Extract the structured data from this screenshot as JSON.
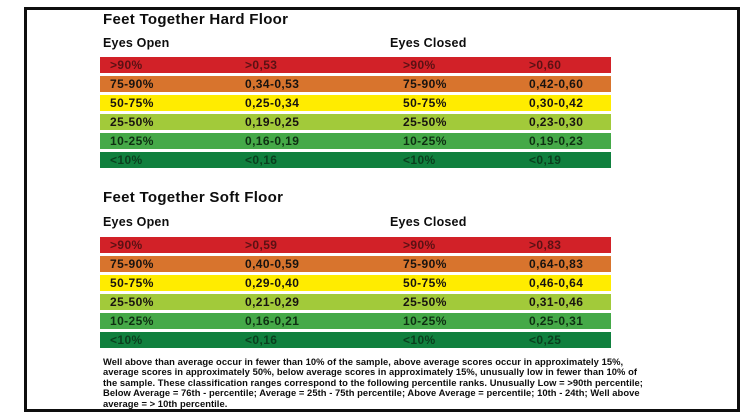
{
  "colors": {
    "red": {
      "bg": "#d22128",
      "text": "#5a1114"
    },
    "orange": {
      "bg": "#d8742d",
      "text": "#181310"
    },
    "yellow": {
      "bg": "#ffec00",
      "text": "#181310"
    },
    "yellow_green": {
      "bg": "#a2ca3a",
      "text": "#181310"
    },
    "green": {
      "bg": "#45a948",
      "text": "#0e2f12"
    },
    "dark_green": {
      "bg": "#10803e",
      "text": "#0a3e1e"
    },
    "frame_border": "#0e0e0e"
  },
  "tables": [
    {
      "title": "Feet Together Hard Floor",
      "column_headers": [
        "Eyes Open",
        "Eyes Closed"
      ],
      "rows": [
        {
          "color": "red",
          "cells": [
            ">90%",
            ">0,53",
            ">90%",
            ">0,60"
          ]
        },
        {
          "color": "orange",
          "cells": [
            "75-90%",
            "0,34-0,53",
            "75-90%",
            "0,42-0,60"
          ]
        },
        {
          "color": "yellow",
          "cells": [
            "50-75%",
            "0,25-0,34",
            "50-75%",
            "0,30-0,42"
          ]
        },
        {
          "color": "yellow_green",
          "cells": [
            "25-50%",
            "0,19-0,25",
            "25-50%",
            "0,23-0,30"
          ]
        },
        {
          "color": "green",
          "cells": [
            "10-25%",
            "0,16-0,19",
            "10-25%",
            "0,19-0,23"
          ]
        },
        {
          "color": "dark_green",
          "cells": [
            "<10%",
            "<0,16",
            "<10%",
            "<0,19"
          ]
        }
      ]
    },
    {
      "title": "Feet Together Soft Floor",
      "column_headers": [
        "Eyes Open",
        "Eyes Closed"
      ],
      "rows": [
        {
          "color": "red",
          "cells": [
            ">90%",
            ">0,59",
            ">90%",
            ">0,83"
          ]
        },
        {
          "color": "orange",
          "cells": [
            "75-90%",
            "0,40-0,59",
            "75-90%",
            "0,64-0,83"
          ]
        },
        {
          "color": "yellow",
          "cells": [
            "50-75%",
            "0,29-0,40",
            "50-75%",
            "0,46-0,64"
          ]
        },
        {
          "color": "yellow_green",
          "cells": [
            "25-50%",
            "0,21-0,29",
            "25-50%",
            "0,31-0,46"
          ]
        },
        {
          "color": "green",
          "cells": [
            "10-25%",
            "0,16-0,21",
            "10-25%",
            "0,25-0,31"
          ]
        },
        {
          "color": "dark_green",
          "cells": [
            "<10%",
            "<0,16",
            "<10%",
            "<0,25"
          ]
        }
      ]
    }
  ],
  "footer": {
    "lines": [
      "Well above than average occur in fewer than 10% of the sample, above average scores occur in approximately 15%,",
      "average scores in approximately 50%, below average scores in approximately 15%, unusually low in fewer than 10% of",
      "the sample. These classification ranges correspond to the following percentile ranks. Unusually Low = >90th percentile;",
      "Below Average = 76th - percentile; Average = 25th - 75th percentile; Above Average = percentile; 10th - 24th; Well above",
      "average = > 10th percentile."
    ]
  }
}
